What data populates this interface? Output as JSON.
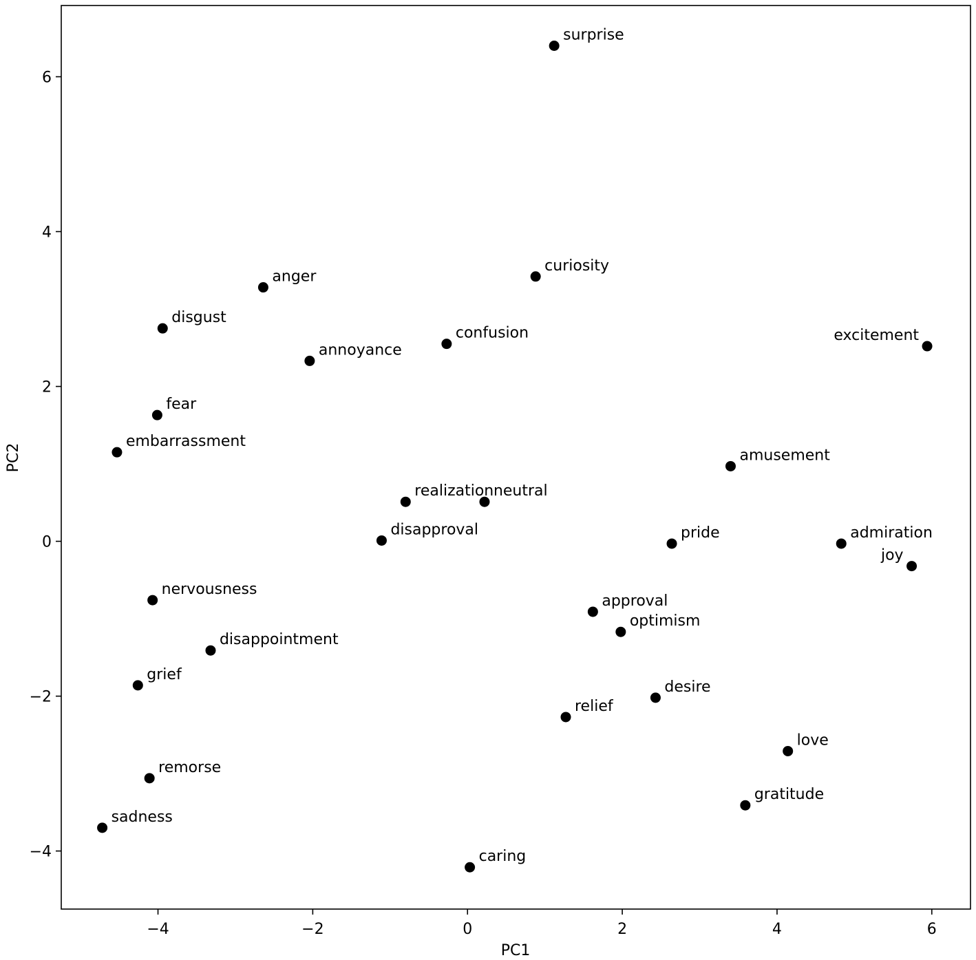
{
  "chart_data": {
    "type": "scatter",
    "title": "",
    "xlabel": "PC1",
    "ylabel": "PC2",
    "xlim": [
      -5.25,
      6.5
    ],
    "ylim": [
      -4.75,
      6.92
    ],
    "xticks": [
      -4,
      -2,
      0,
      2,
      4,
      6
    ],
    "yticks": [
      -4,
      -2,
      0,
      2,
      4,
      6
    ],
    "xtick_labels": [
      "−4",
      "−2",
      "0",
      "2",
      "4",
      "6"
    ],
    "ytick_labels": [
      "−4",
      "−2",
      "0",
      "2",
      "4",
      "6"
    ],
    "grid": false,
    "legend": "none",
    "marker_color": "#000000",
    "points": [
      {
        "label": "surprise",
        "x": 1.12,
        "y": 6.4
      },
      {
        "label": "curiosity",
        "x": 0.88,
        "y": 3.42
      },
      {
        "label": "anger",
        "x": -2.64,
        "y": 3.28
      },
      {
        "label": "disgust",
        "x": -3.94,
        "y": 2.75
      },
      {
        "label": "confusion",
        "x": -0.27,
        "y": 2.55
      },
      {
        "label": "annoyance",
        "x": -2.04,
        "y": 2.33
      },
      {
        "label": "excitement",
        "x": 5.94,
        "y": 2.52
      },
      {
        "label": "fear",
        "x": -4.01,
        "y": 1.63
      },
      {
        "label": "embarrassment",
        "x": -4.53,
        "y": 1.15
      },
      {
        "label": "amusement",
        "x": 3.4,
        "y": 0.97
      },
      {
        "label": "realization",
        "x": -0.8,
        "y": 0.51
      },
      {
        "label": "neutral",
        "x": 0.22,
        "y": 0.51
      },
      {
        "label": "disapproval",
        "x": -1.11,
        "y": 0.01
      },
      {
        "label": "pride",
        "x": 2.64,
        "y": -0.03
      },
      {
        "label": "admiration",
        "x": 4.83,
        "y": -0.03
      },
      {
        "label": "joy",
        "x": 5.74,
        "y": -0.32
      },
      {
        "label": "nervousness",
        "x": -4.07,
        "y": -0.76
      },
      {
        "label": "approval",
        "x": 1.62,
        "y": -0.91
      },
      {
        "label": "optimism",
        "x": 1.98,
        "y": -1.17
      },
      {
        "label": "disappointment",
        "x": -3.32,
        "y": -1.41
      },
      {
        "label": "grief",
        "x": -4.26,
        "y": -1.86
      },
      {
        "label": "desire",
        "x": 2.43,
        "y": -2.02
      },
      {
        "label": "relief",
        "x": 1.27,
        "y": -2.27
      },
      {
        "label": "love",
        "x": 4.14,
        "y": -2.71
      },
      {
        "label": "remorse",
        "x": -4.11,
        "y": -3.06
      },
      {
        "label": "gratitude",
        "x": 3.59,
        "y": -3.41
      },
      {
        "label": "sadness",
        "x": -4.72,
        "y": -3.7
      },
      {
        "label": "caring",
        "x": 0.03,
        "y": -4.21
      }
    ]
  }
}
